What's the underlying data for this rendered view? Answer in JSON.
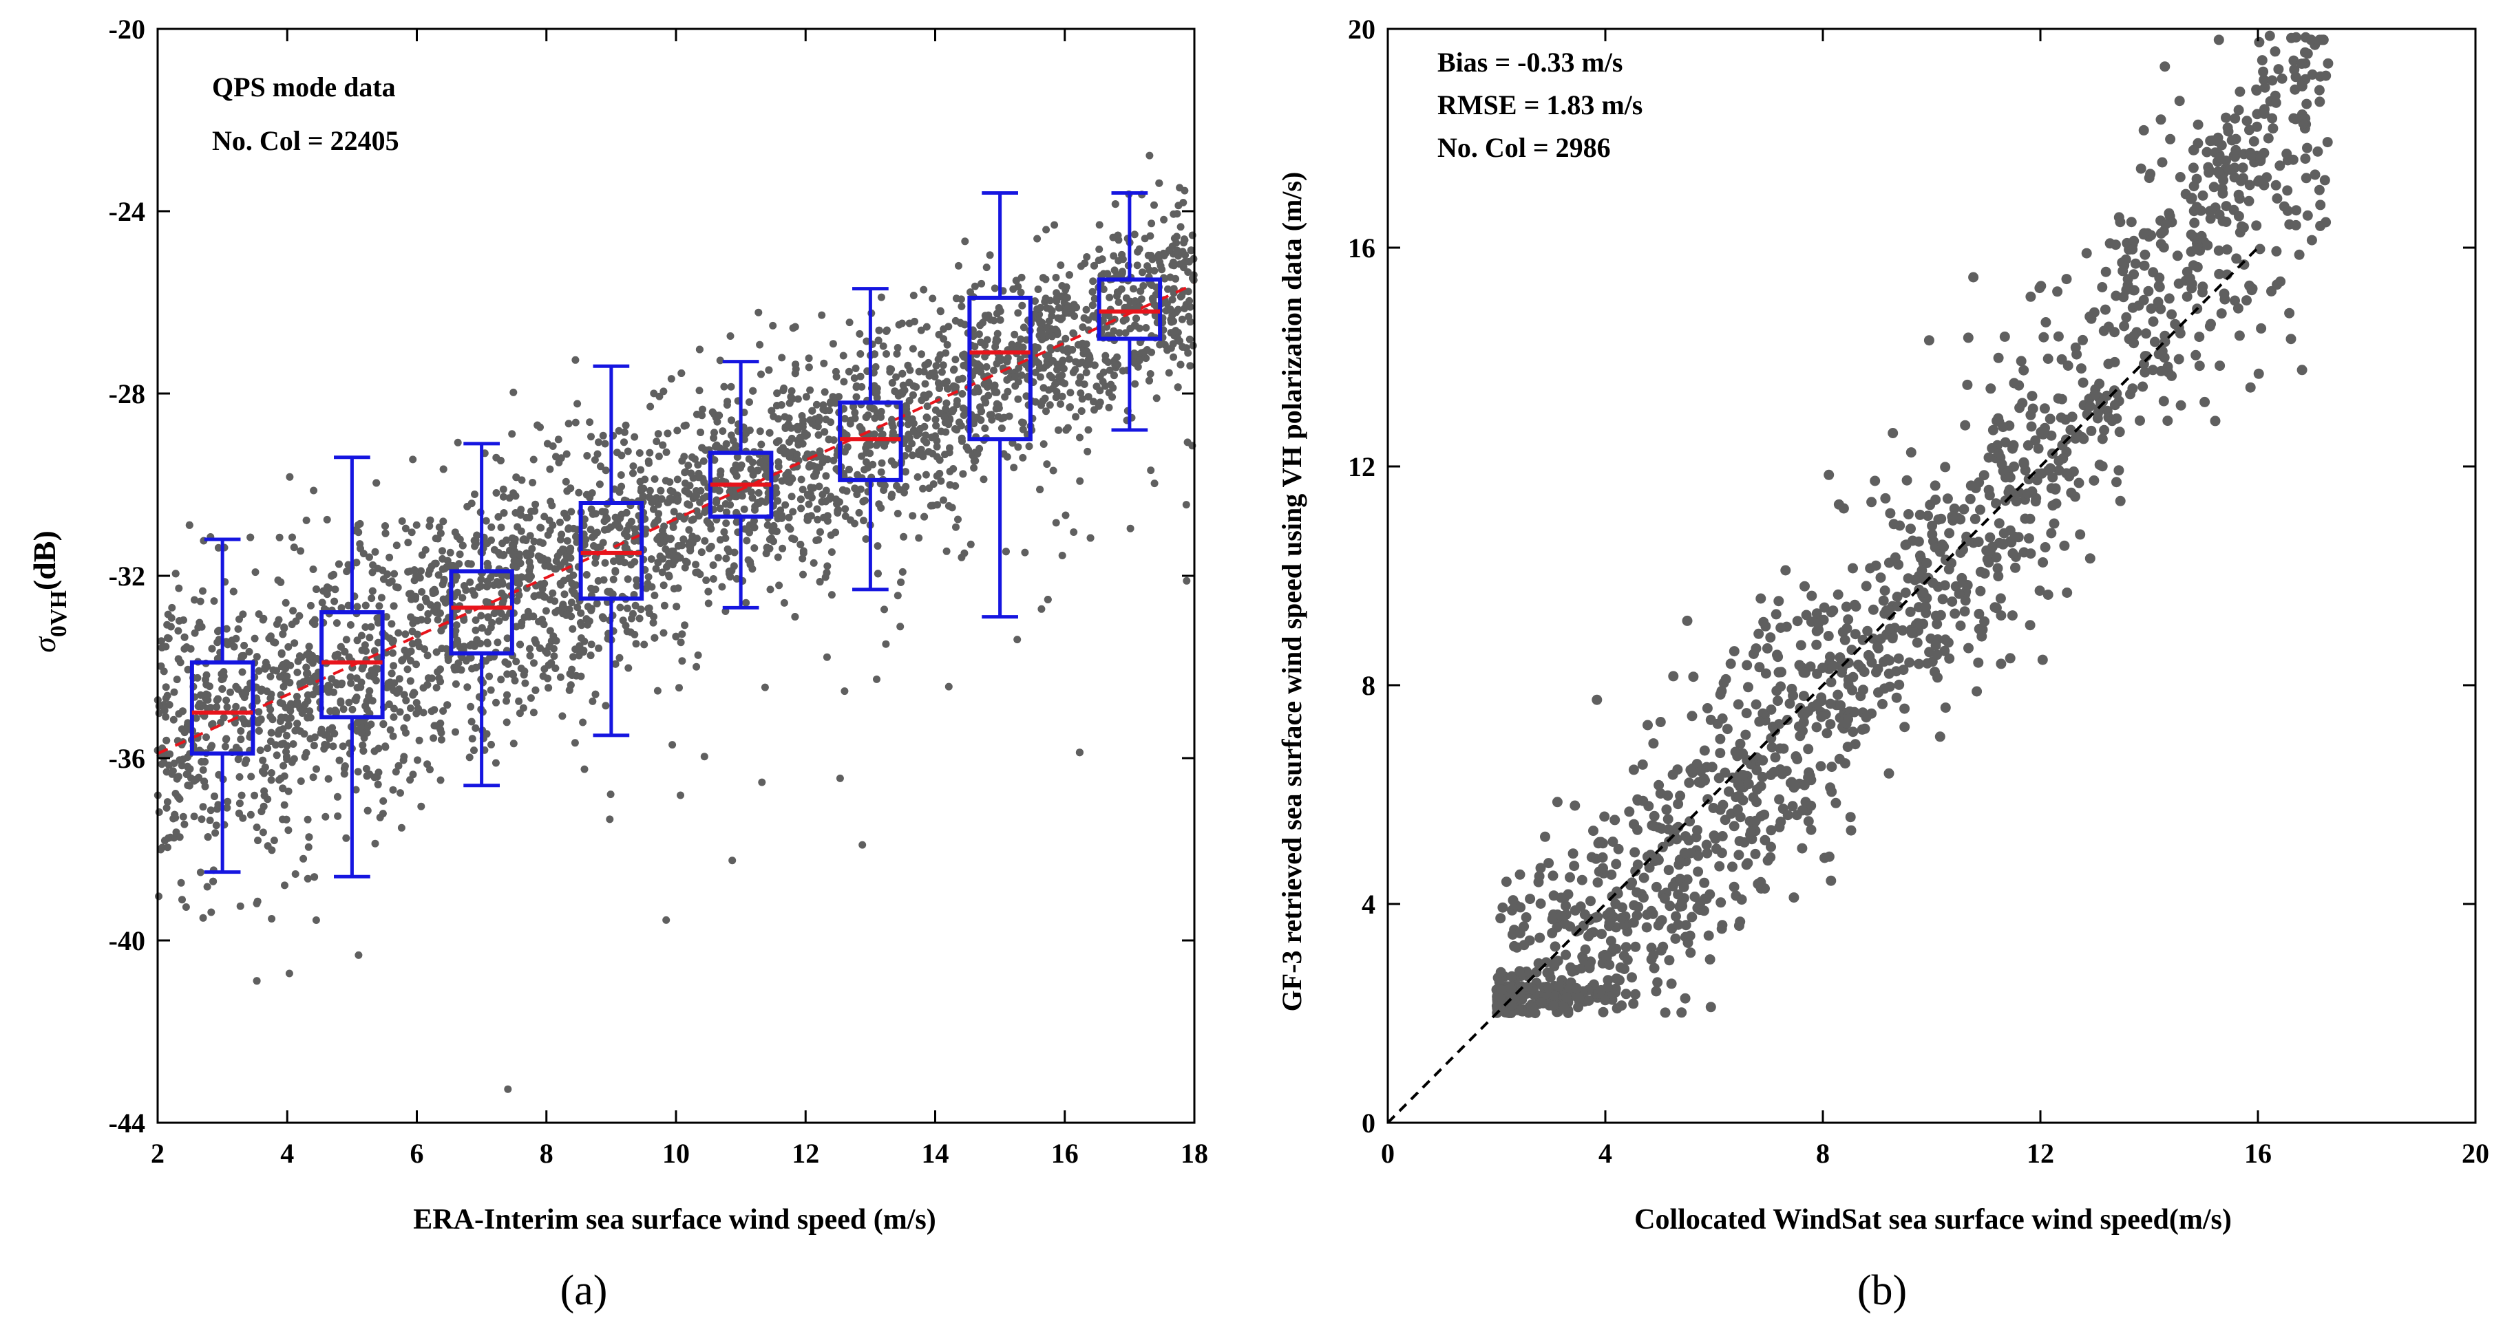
{
  "chart_data": [
    {
      "type": "scatter",
      "panel_label": "(a)",
      "xlabel": "ERA-Interim sea surface wind speed (m/s)",
      "ylabel_main": "σ",
      "ylabel_sub": "0VH",
      "ylabel_unit": "(dB)",
      "xlim": [
        2,
        18
      ],
      "ylim": [
        -44,
        -20
      ],
      "xticks": [
        2,
        4,
        6,
        8,
        10,
        12,
        14,
        16,
        18
      ],
      "yticks": [
        -44,
        -40,
        -36,
        -32,
        -28,
        -24,
        -20
      ],
      "x_tick_labels": [
        "2",
        "4",
        "6",
        "8",
        "10",
        "12",
        "14",
        "16",
        "18"
      ],
      "y_tick_labels": [
        "-44",
        "-40",
        "-36",
        "-32",
        "-28",
        "-24",
        "-20"
      ],
      "annotations": [
        "QPS mode data",
        "No. Col = 22405"
      ],
      "boxplot": [
        {
          "x": 3,
          "whisker_low": -38.5,
          "q1": -35.9,
          "median": -35.0,
          "q3": -33.9,
          "whisker_high": -31.2
        },
        {
          "x": 5,
          "whisker_low": -38.6,
          "q1": -35.1,
          "median": -33.9,
          "q3": -32.8,
          "whisker_high": -29.4
        },
        {
          "x": 7,
          "whisker_low": -36.6,
          "q1": -33.7,
          "median": -32.7,
          "q3": -31.9,
          "whisker_high": -29.1
        },
        {
          "x": 9,
          "whisker_low": -35.5,
          "q1": -32.5,
          "median": -31.5,
          "q3": -30.4,
          "whisker_high": -27.4
        },
        {
          "x": 11,
          "whisker_low": -32.7,
          "q1": -30.7,
          "median": -30.0,
          "q3": -29.3,
          "whisker_high": -27.3
        },
        {
          "x": 13,
          "whisker_low": -32.3,
          "q1": -29.9,
          "median": -29.0,
          "q3": -28.2,
          "whisker_high": -25.7
        },
        {
          "x": 15,
          "whisker_low": -32.9,
          "q1": -29.0,
          "median": -27.1,
          "q3": -25.9,
          "whisker_high": -23.6
        },
        {
          "x": 17,
          "whisker_low": -28.8,
          "q1": -26.8,
          "median": -26.2,
          "q3": -25.5,
          "whisker_high": -23.6
        }
      ],
      "fit_line": {
        "x": [
          2,
          18
        ],
        "y": [
          -35.9,
          -25.6
        ],
        "style": "dashed",
        "color": "#e8141b"
      },
      "point_color": "#5f5f5f",
      "box_color": "#1515e0",
      "median_color": "#e8141b"
    },
    {
      "type": "scatter",
      "panel_label": "(b)",
      "xlabel": "Collocated WindSat sea surface wind speed(m/s)",
      "ylabel": "GF-3 retrieved sea surface wind speed using VH polarization data (m/s)",
      "xlim": [
        0,
        20
      ],
      "ylim": [
        0,
        20
      ],
      "xticks": [
        0,
        4,
        8,
        12,
        16,
        20
      ],
      "yticks": [
        0,
        4,
        8,
        12,
        16,
        20
      ],
      "x_tick_labels": [
        "0",
        "4",
        "8",
        "12",
        "16",
        "20"
      ],
      "y_tick_labels": [
        "0",
        "4",
        "8",
        "12",
        "16",
        "20"
      ],
      "annotations": [
        "Bias = -0.33 m/s",
        "RMSE = 1.83 m/s",
        "No. Col = 2986"
      ],
      "reference_line": {
        "x": [
          0,
          16
        ],
        "y": [
          0,
          16
        ],
        "style": "dashed",
        "color": "#000000"
      },
      "point_color": "#5f5f5f"
    }
  ]
}
